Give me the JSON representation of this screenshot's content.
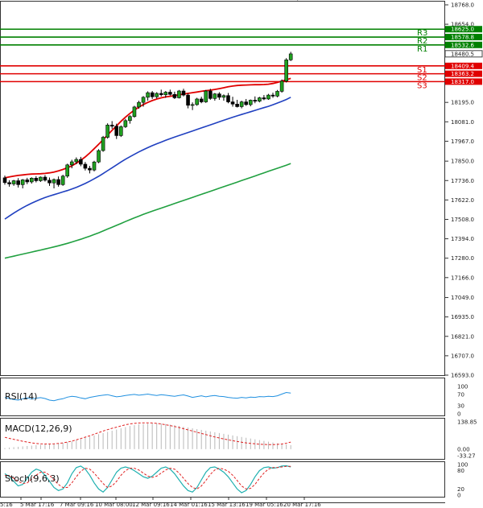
{
  "chart_data": {
    "type": "candlestick",
    "main": {
      "price_axis_labels": [
        "18768.0",
        "18654.0",
        "18480.5",
        "18195.0",
        "18081.0",
        "17967.0",
        "17850.0",
        "17736.0",
        "17622.0",
        "17508.0",
        "17394.0",
        "17280.0",
        "17166.0",
        "17049.0",
        "16935.0",
        "16821.0",
        "16707.0",
        "16593.0"
      ],
      "ylim": [
        16593,
        18768
      ],
      "levels": [
        {
          "name": "R3",
          "value": 18625.0,
          "label": "18625.0",
          "color": "#008000"
        },
        {
          "name": "R2",
          "value": 18578.8,
          "label": "18578.8",
          "color": "#008000"
        },
        {
          "name": "R1",
          "value": 18532.6,
          "label": "18532.6",
          "color": "#008000"
        },
        {
          "name": "S1",
          "value": 18409.4,
          "label": "18409.4",
          "color": "#e00000"
        },
        {
          "name": "S2",
          "value": 18363.2,
          "label": "18363.2",
          "color": "#e00000"
        },
        {
          "name": "S3",
          "value": 18317.0,
          "label": "18317.0",
          "color": "#e00000"
        }
      ],
      "current_price": {
        "value": 18480.5,
        "label": "18480.5"
      },
      "moving_averages": [
        {
          "name": "EMA fast",
          "color": "#e00000",
          "values": [
            17752,
            17757,
            17762,
            17766,
            17769,
            17772,
            17774,
            17775,
            17776,
            17778,
            17781,
            17786,
            17793,
            17801,
            17811,
            17823,
            17838,
            17855,
            17875,
            17898,
            17923,
            17949,
            17976,
            18003,
            18031,
            18058,
            18084,
            18108,
            18130,
            18150,
            18167,
            18182,
            18195,
            18206,
            18215,
            18222,
            18227,
            18231,
            18235,
            18239,
            18244,
            18248,
            18252,
            18256,
            18260,
            18264,
            18267,
            18271,
            18276,
            18281,
            18287,
            18291,
            18294,
            18296,
            18297,
            18298,
            18299,
            18299,
            18300,
            18302,
            18306,
            18312,
            18320,
            18328,
            18336
          ]
        },
        {
          "name": "EMA mid",
          "color": "#2040c0",
          "values": [
            17510,
            17528,
            17545,
            17561,
            17576,
            17590,
            17603,
            17615,
            17626,
            17636,
            17645,
            17653,
            17661,
            17669,
            17677,
            17686,
            17696,
            17707,
            17719,
            17732,
            17746,
            17761,
            17777,
            17794,
            17811,
            17828,
            17845,
            17861,
            17876,
            17890,
            17904,
            17917,
            17929,
            17941,
            17952,
            17962,
            17972,
            17982,
            17991,
            18000,
            18009,
            18018,
            18027,
            18036,
            18045,
            18054,
            18063,
            18072,
            18081,
            18090,
            18099,
            18108,
            18116,
            18124,
            18132,
            18140,
            18148,
            18156,
            18164,
            18172,
            18181,
            18191,
            18201,
            18212,
            18225
          ]
        },
        {
          "name": "SMA slow",
          "color": "#20a040",
          "values": [
            17280,
            17286,
            17292,
            17298,
            17304,
            17310,
            17316,
            17322,
            17328,
            17334,
            17340,
            17346,
            17353,
            17360,
            17367,
            17375,
            17383,
            17391,
            17400,
            17409,
            17419,
            17429,
            17440,
            17451,
            17462,
            17473,
            17484,
            17495,
            17506,
            17517,
            17527,
            17537,
            17547,
            17556,
            17565,
            17574,
            17583,
            17592,
            17601,
            17610,
            17619,
            17628,
            17637,
            17646,
            17655,
            17664,
            17673,
            17682,
            17691,
            17700,
            17709,
            17718,
            17727,
            17736,
            17745,
            17754,
            17763,
            17772,
            17781,
            17790,
            17799,
            17808,
            17817,
            17826,
            17836
          ]
        }
      ],
      "candles": [
        [
          17752,
          17765,
          17712,
          17724
        ],
        [
          17724,
          17738,
          17700,
          17716
        ],
        [
          17716,
          17740,
          17705,
          17735
        ],
        [
          17735,
          17750,
          17695,
          17712
        ],
        [
          17712,
          17745,
          17690,
          17740
        ],
        [
          17740,
          17752,
          17715,
          17728
        ],
        [
          17728,
          17755,
          17718,
          17750
        ],
        [
          17750,
          17762,
          17725,
          17735
        ],
        [
          17735,
          17760,
          17728,
          17756
        ],
        [
          17756,
          17768,
          17730,
          17738
        ],
        [
          17738,
          17754,
          17705,
          17722
        ],
        [
          17722,
          17748,
          17690,
          17742
        ],
        [
          17742,
          17760,
          17700,
          17712
        ],
        [
          17712,
          17770,
          17705,
          17762
        ],
        [
          17762,
          17835,
          17752,
          17828
        ],
        [
          17828,
          17858,
          17808,
          17846
        ],
        [
          17846,
          17872,
          17832,
          17860
        ],
        [
          17860,
          17875,
          17820,
          17832
        ],
        [
          17832,
          17845,
          17795,
          17808
        ],
        [
          17808,
          17822,
          17778,
          17798
        ],
        [
          17798,
          17852,
          17790,
          17845
        ],
        [
          17845,
          17920,
          17838,
          17912
        ],
        [
          17912,
          17998,
          17905,
          17990
        ],
        [
          17990,
          18072,
          17982,
          18062
        ],
        [
          18062,
          18085,
          18040,
          18055
        ],
        [
          18055,
          18070,
          17980,
          18000
        ],
        [
          18000,
          18060,
          17992,
          18052
        ],
        [
          18052,
          18098,
          18045,
          18088
        ],
        [
          18088,
          18120,
          18070,
          18112
        ],
        [
          18112,
          18175,
          18105,
          18168
        ],
        [
          18168,
          18205,
          18158,
          18195
        ],
        [
          18195,
          18232,
          18170,
          18225
        ],
        [
          18225,
          18260,
          18205,
          18252
        ],
        [
          18252,
          18262,
          18215,
          18228
        ],
        [
          18228,
          18255,
          18218,
          18248
        ],
        [
          18248,
          18270,
          18230,
          18240
        ],
        [
          18240,
          18262,
          18222,
          18255
        ],
        [
          18255,
          18270,
          18235,
          18242
        ],
        [
          18242,
          18258,
          18215,
          18222
        ],
        [
          18222,
          18268,
          18218,
          18262
        ],
        [
          18262,
          18275,
          18230,
          18238
        ],
        [
          18238,
          18248,
          18160,
          18178
        ],
        [
          18178,
          18195,
          18150,
          18182
        ],
        [
          18182,
          18222,
          18175,
          18215
        ],
        [
          18215,
          18228,
          18190,
          18198
        ],
        [
          18198,
          18268,
          18192,
          18262
        ],
        [
          18262,
          18275,
          18210,
          18218
        ],
        [
          18218,
          18250,
          18205,
          18245
        ],
        [
          18245,
          18255,
          18210,
          18225
        ],
        [
          18225,
          18242,
          18205,
          18235
        ],
        [
          18235,
          18250,
          18190,
          18198
        ],
        [
          18198,
          18228,
          18170,
          18185
        ],
        [
          18185,
          18210,
          18165,
          18170
        ],
        [
          18170,
          18205,
          18160,
          18198
        ],
        [
          18198,
          18215,
          18175,
          18182
        ],
        [
          18182,
          18212,
          18172,
          18208
        ],
        [
          18208,
          18230,
          18190,
          18202
        ],
        [
          18202,
          18228,
          18195,
          18222
        ],
        [
          18222,
          18238,
          18208,
          18215
        ],
        [
          18215,
          18245,
          18210,
          18238
        ],
        [
          18238,
          18252,
          18222,
          18232
        ],
        [
          18232,
          18268,
          18225,
          18260
        ],
        [
          18260,
          18330,
          18252,
          18320
        ],
        [
          18320,
          18455,
          18312,
          18445
        ],
        [
          18445,
          18492,
          18438,
          18480
        ]
      ]
    },
    "time_axis_labels": [
      "5:16",
      "5 Mar 17:16",
      "7 Mar 09:16",
      "10 Mar 08:00",
      "12 Mar 09:16",
      "14 Mar 01:16",
      "15 Mar 13:16",
      "19 Mar 05:16",
      "20 Mar 17:16"
    ],
    "rsi": {
      "label": "RSI(14)",
      "axis_labels": [
        "100",
        "70",
        "30",
        "0"
      ],
      "ylim": [
        0,
        100
      ],
      "values": [
        60,
        56,
        52,
        50,
        55,
        58,
        54,
        57,
        59,
        56,
        50,
        48,
        52,
        55,
        61,
        64,
        62,
        58,
        55,
        60,
        63,
        66,
        68,
        70,
        66,
        62,
        64,
        67,
        69,
        71,
        68,
        70,
        72,
        69,
        67,
        70,
        68,
        66,
        64,
        67,
        69,
        65,
        60,
        63,
        66,
        62,
        65,
        67,
        64,
        63,
        60,
        58,
        57,
        60,
        58,
        61,
        60,
        63,
        62,
        64,
        63,
        66,
        72,
        78,
        76
      ]
    },
    "macd": {
      "label": "MACD(12,26,9)",
      "axis_labels": [
        "138.85",
        "0.00",
        "-33.27"
      ],
      "ylim": [
        -33.27,
        138.85
      ],
      "histogram": [
        5,
        8,
        10,
        12,
        14,
        16,
        18,
        20,
        22,
        24,
        26,
        28,
        30,
        32,
        36,
        40,
        46,
        52,
        58,
        64,
        70,
        76,
        82,
        88,
        94,
        100,
        106,
        112,
        118,
        122,
        126,
        128,
        130,
        131,
        132,
        130,
        128,
        125,
        122,
        118,
        114,
        110,
        106,
        102,
        98,
        94,
        90,
        86,
        82,
        78,
        74,
        70,
        66,
        62,
        58,
        54,
        50,
        46,
        42,
        38,
        34,
        30,
        26,
        24,
        20
      ],
      "signal": [
        60,
        55,
        50,
        45,
        40,
        36,
        32,
        29,
        27,
        26,
        26,
        27,
        29,
        32,
        36,
        41,
        47,
        54,
        61,
        68,
        76,
        84,
        92,
        99,
        106,
        112,
        118,
        124,
        128,
        131,
        133,
        134,
        134,
        133,
        131,
        128,
        124,
        120,
        115,
        110,
        104,
        98,
        92,
        86,
        80,
        74,
        68,
        62,
        57,
        52,
        47,
        43,
        39,
        35,
        32,
        29,
        27,
        25,
        24,
        23,
        23,
        24,
        26,
        30,
        36
      ]
    },
    "stoch": {
      "label": "Stoch(9,6,3)",
      "axis_labels": [
        "100",
        "80",
        "20",
        "0"
      ],
      "ylim": [
        0,
        100
      ],
      "k": [
        70,
        60,
        45,
        30,
        35,
        55,
        75,
        85,
        80,
        65,
        45,
        25,
        15,
        20,
        40,
        70,
        90,
        95,
        85,
        65,
        40,
        20,
        10,
        25,
        50,
        75,
        88,
        92,
        88,
        80,
        70,
        60,
        55,
        62,
        75,
        88,
        92,
        85,
        70,
        50,
        30,
        15,
        10,
        25,
        50,
        75,
        90,
        92,
        85,
        75,
        60,
        40,
        20,
        8,
        15,
        35,
        60,
        80,
        90,
        92,
        88,
        90,
        95,
        96,
        92
      ],
      "d": [
        65,
        62,
        55,
        45,
        38,
        40,
        52,
        65,
        75,
        75,
        65,
        50,
        35,
        25,
        25,
        40,
        60,
        78,
        88,
        85,
        72,
        55,
        38,
        25,
        30,
        45,
        65,
        80,
        88,
        88,
        82,
        72,
        62,
        58,
        62,
        72,
        82,
        88,
        85,
        72,
        55,
        38,
        25,
        20,
        30,
        48,
        68,
        82,
        88,
        85,
        78,
        65,
        48,
        30,
        20,
        22,
        35,
        55,
        72,
        85,
        90,
        90,
        92,
        94,
        94
      ]
    }
  }
}
